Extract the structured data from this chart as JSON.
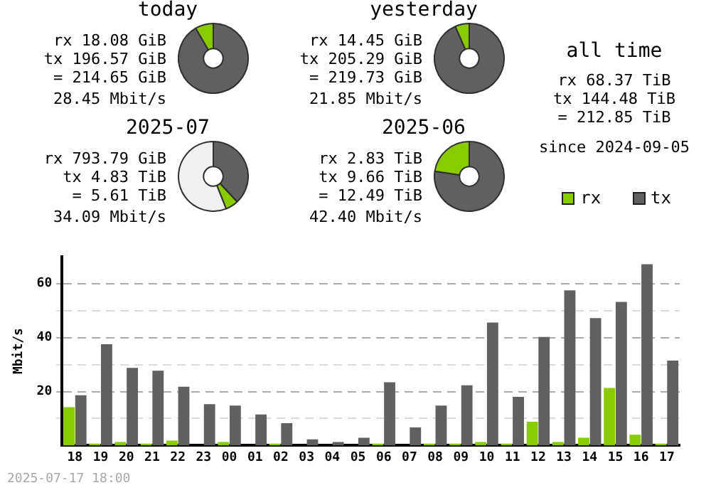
{
  "chart_data": [
    {
      "type": "donut",
      "title": "today",
      "categories": [
        null,
        null
      ],
      "values": [
        91.58,
        8.42
      ],
      "colors": [
        "#606060",
        "#88cc00"
      ],
      "annotations": [
        "rx 18.08 GiB",
        "tx 196.57 GiB",
        "= 214.65 GiB",
        "28.45 Mbit/s"
      ]
    },
    {
      "type": "donut",
      "title": "yesterday",
      "categories": [
        null,
        null
      ],
      "values": [
        93.43,
        6.57
      ],
      "colors": [
        "#606060",
        "#88cc00"
      ],
      "annotations": [
        "rx 14.45 GiB",
        "tx 205.29 GiB",
        "= 219.73 GiB",
        "21.85 Mbit/s"
      ]
    },
    {
      "type": "other",
      "title": "all time",
      "annotations": [
        "rx 68.37 TiB",
        "tx 144.48 TiB",
        "= 212.85 TiB",
        "since 2024-09-05"
      ]
    },
    {
      "type": "donut",
      "title": "2025-07",
      "categories": [
        null,
        null,
        null
      ],
      "values": [
        38,
        6,
        56
      ],
      "colors": [
        "#606060",
        "#88cc00",
        "#f0f0f0"
      ],
      "annotations": [
        "rx 793.79 GiB",
        "tx 4.83 TiB",
        "= 5.61 TiB",
        "34.09 Mbit/s"
      ]
    },
    {
      "type": "donut",
      "title": "2025-06",
      "categories": [
        null,
        null
      ],
      "values": [
        77.34,
        22.66
      ],
      "colors": [
        "#606060",
        "#88cc00"
      ],
      "annotations": [
        "rx 2.83 TiB",
        "tx 9.66 TiB",
        "= 12.49 TiB",
        "42.40 Mbit/s"
      ]
    },
    {
      "type": "bar",
      "categories": [
        "18",
        "19",
        "20",
        "21",
        "22",
        "23",
        "00",
        "01",
        "02",
        "03",
        "04",
        "05",
        "06",
        "07",
        "08",
        "09",
        "10",
        "11",
        "12",
        "13",
        "14",
        "15",
        "16",
        "17"
      ],
      "series": [
        {
          "name": "rx",
          "color": "#88cc00",
          "values": [
            14.2,
            0.7,
            1.3,
            0.7,
            1.8,
            0,
            1.3,
            0,
            0.7,
            0,
            0,
            0,
            0.7,
            0,
            0.7,
            0.7,
            1.3,
            0.7,
            8.8,
            1.3,
            2.9,
            21.3,
            4.0,
            0.7
          ]
        },
        {
          "name": "tx",
          "color": "#606060",
          "values": [
            18.6,
            37.5,
            28.8,
            27.7,
            21.8,
            15.3,
            14.8,
            11.5,
            8.3,
            2.3,
            1.3,
            2.9,
            23.4,
            6.7,
            14.8,
            22.3,
            45.6,
            18.0,
            40.2,
            57.5,
            47.2,
            53.2,
            67.2,
            31.5
          ]
        }
      ],
      "ylabel": "Mbit/s",
      "ylim": [
        0,
        70
      ],
      "yticks": [
        {
          "value": 0,
          "label": null
        },
        {
          "value": 10,
          "label": null
        },
        20,
        {
          "value": 30,
          "label": null
        },
        40,
        {
          "value": 50,
          "label": null
        },
        60
      ],
      "grid": "y",
      "legend": "top right",
      "annotations": [
        "2025-07-17 18:00"
      ]
    }
  ]
}
